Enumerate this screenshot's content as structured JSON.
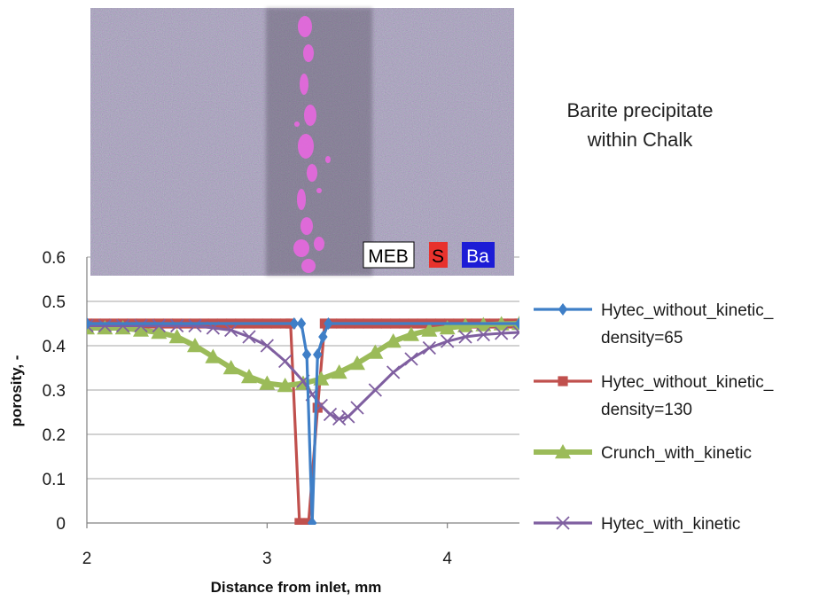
{
  "chart_data": {
    "type": "line",
    "title": "",
    "xlabel": "Distance  from inlet, mm",
    "ylabel": "porosity, -",
    "xlim": [
      2,
      4.4
    ],
    "ylim": [
      0,
      0.6
    ],
    "xticks": [
      "2",
      "3",
      "4"
    ],
    "yticks": [
      "0",
      "0.1",
      "0.2",
      "0.3",
      "0.4",
      "0.5",
      "0.6"
    ],
    "grid": "horizontal",
    "legend_position": "right",
    "annotation_lines": [
      "Barite precipitate",
      "within Chalk"
    ],
    "map_labels": [
      {
        "text": "MEB",
        "color": "#000000",
        "bg": "#ffffff"
      },
      {
        "text": "S",
        "color": "#000000",
        "bg": "#e8322d"
      },
      {
        "text": "Ba",
        "color": "#ffffff",
        "bg": "#1c1cd6"
      }
    ],
    "series": [
      {
        "name_lines": [
          "Hytec_without_kinetic_",
          "density=65"
        ],
        "color": "#3f7fc7",
        "marker": "diamond",
        "x": [
          2.0,
          3.15,
          3.19,
          3.22,
          3.25,
          3.28,
          3.31,
          3.34,
          4.4
        ],
        "y": [
          0.45,
          0.45,
          0.45,
          0.38,
          0.0,
          0.38,
          0.42,
          0.45,
          0.45
        ]
      },
      {
        "name_lines": [
          "Hytec_without_kinetic_",
          "density=130"
        ],
        "color": "#c0504d",
        "marker": "square",
        "x": [
          2.0,
          2.05,
          2.1,
          2.15,
          2.2,
          2.25,
          2.3,
          2.35,
          2.4,
          2.45,
          2.5,
          2.55,
          2.6,
          2.65,
          2.7,
          2.75,
          2.8,
          2.85,
          2.9,
          2.95,
          3.0,
          3.05,
          3.1,
          3.13,
          3.18,
          3.23,
          3.28,
          3.32,
          3.36,
          3.41,
          3.46,
          3.51,
          3.56,
          3.61,
          3.66,
          3.71,
          3.76,
          3.81,
          3.86,
          3.91,
          3.96,
          4.01,
          4.06,
          4.11,
          4.16,
          4.21,
          4.26,
          4.31,
          4.36,
          4.4
        ],
        "y": [
          0.45,
          0.45,
          0.45,
          0.45,
          0.45,
          0.45,
          0.45,
          0.45,
          0.45,
          0.45,
          0.45,
          0.45,
          0.45,
          0.45,
          0.45,
          0.45,
          0.45,
          0.45,
          0.45,
          0.45,
          0.45,
          0.45,
          0.45,
          0.45,
          0.0,
          0.0,
          0.26,
          0.45,
          0.45,
          0.45,
          0.45,
          0.45,
          0.45,
          0.45,
          0.45,
          0.45,
          0.45,
          0.45,
          0.45,
          0.45,
          0.45,
          0.45,
          0.45,
          0.45,
          0.45,
          0.45,
          0.45,
          0.45,
          0.45,
          0.45
        ]
      },
      {
        "name_lines": [
          "Crunch_with_kinetic"
        ],
        "color": "#9bbb59",
        "marker": "triangle",
        "x": [
          2.0,
          2.1,
          2.2,
          2.3,
          2.4,
          2.5,
          2.6,
          2.7,
          2.8,
          2.9,
          3.0,
          3.1,
          3.2,
          3.3,
          3.4,
          3.5,
          3.6,
          3.7,
          3.8,
          3.9,
          4.0,
          4.1,
          4.2,
          4.3,
          4.4
        ],
        "y": [
          0.44,
          0.44,
          0.44,
          0.435,
          0.43,
          0.42,
          0.4,
          0.375,
          0.35,
          0.33,
          0.315,
          0.31,
          0.315,
          0.325,
          0.34,
          0.36,
          0.385,
          0.41,
          0.425,
          0.435,
          0.44,
          0.445,
          0.447,
          0.449,
          0.45
        ]
      },
      {
        "name_lines": [
          "Hytec_with_kinetic"
        ],
        "color": "#7f5fa0",
        "marker": "x",
        "x": [
          2.0,
          2.1,
          2.2,
          2.3,
          2.4,
          2.5,
          2.6,
          2.7,
          2.8,
          2.9,
          3.0,
          3.1,
          3.2,
          3.25,
          3.3,
          3.35,
          3.4,
          3.45,
          3.5,
          3.6,
          3.7,
          3.8,
          3.9,
          4.0,
          4.1,
          4.2,
          4.3,
          4.4
        ],
        "y": [
          0.445,
          0.445,
          0.445,
          0.445,
          0.445,
          0.445,
          0.445,
          0.44,
          0.435,
          0.42,
          0.4,
          0.365,
          0.32,
          0.29,
          0.265,
          0.245,
          0.235,
          0.24,
          0.26,
          0.3,
          0.34,
          0.37,
          0.395,
          0.41,
          0.42,
          0.425,
          0.428,
          0.43
        ]
      }
    ]
  }
}
